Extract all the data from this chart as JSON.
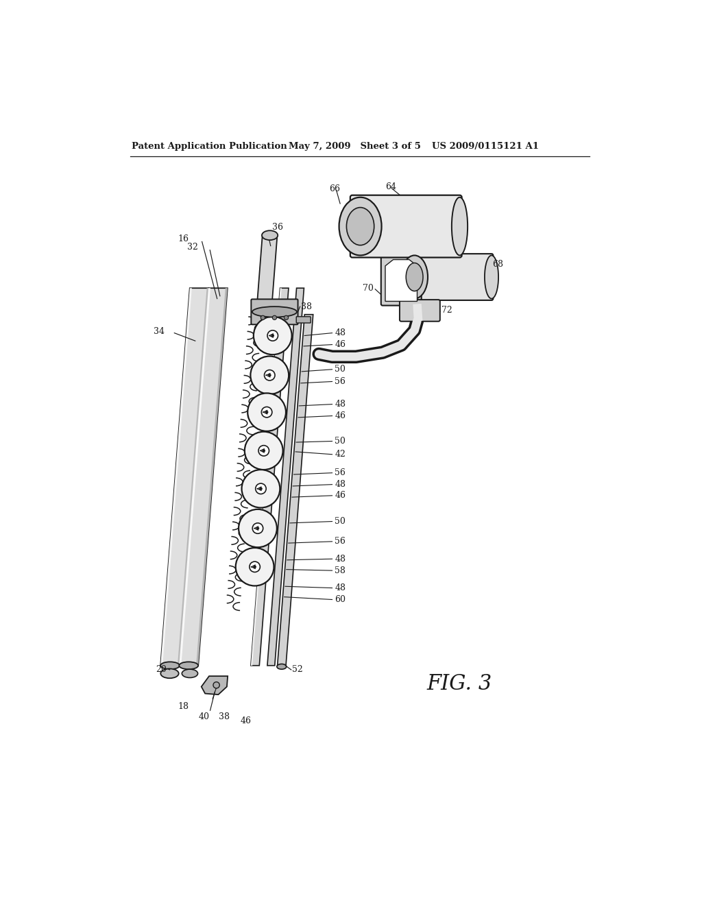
{
  "header_left": "Patent Application Publication",
  "header_mid": "May 7, 2009   Sheet 3 of 5",
  "header_right": "US 2009/0115121 A1",
  "fig_label": "FIG. 3",
  "bg_color": "#ffffff",
  "lc": "#1a1a1a",
  "face_light": "#e8e8e8",
  "face_mid": "#cccccc",
  "face_dark": "#999999",
  "face_vdark": "#666666"
}
